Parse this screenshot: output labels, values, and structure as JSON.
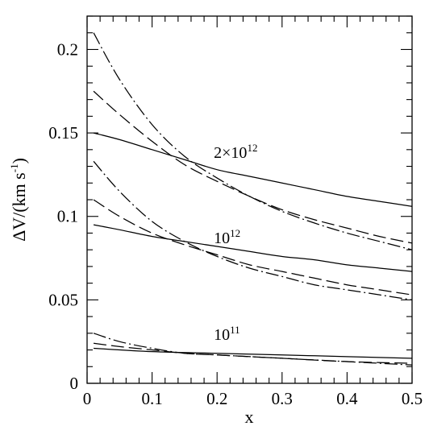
{
  "chart_data": {
    "type": "line",
    "xlabel": "x",
    "ylabel_parts": {
      "main": "ΔV/(km s",
      "sup": "-1",
      "close": ")"
    },
    "xlim": [
      0,
      0.5
    ],
    "ylim": [
      0,
      0.22
    ],
    "x_ticks": [
      "0",
      "0.1",
      "0.2",
      "0.3",
      "0.4",
      "0.5"
    ],
    "x_tick_values": [
      0,
      0.1,
      0.2,
      0.3,
      0.4,
      0.5
    ],
    "y_ticks": [
      "0",
      "0.05",
      "0.1",
      "0.15",
      "0.2"
    ],
    "y_tick_values": [
      0,
      0.05,
      0.1,
      0.15,
      0.2
    ],
    "x_minor_step": 0.02,
    "y_minor_step": 0.01,
    "grid": false,
    "annotations": [
      {
        "id": "m2e12",
        "base": "2×10",
        "sup": "12",
        "x": 0.195,
        "y": 0.135
      },
      {
        "id": "m1e12",
        "base": "10",
        "sup": "12",
        "x": 0.195,
        "y": 0.084
      },
      {
        "id": "m1e11",
        "base": "10",
        "sup": "11",
        "x": 0.195,
        "y": 0.026
      }
    ],
    "series": [
      {
        "group": "2×10^12",
        "style": "solid",
        "x": [
          0.01,
          0.05,
          0.1,
          0.15,
          0.2,
          0.25,
          0.3,
          0.35,
          0.4,
          0.45,
          0.5
        ],
        "y": [
          0.15,
          0.146,
          0.14,
          0.134,
          0.128,
          0.124,
          0.12,
          0.116,
          0.112,
          0.109,
          0.106
        ]
      },
      {
        "group": "2×10^12",
        "style": "dashed",
        "x": [
          0.01,
          0.05,
          0.1,
          0.15,
          0.2,
          0.25,
          0.3,
          0.35,
          0.4,
          0.45,
          0.5
        ],
        "y": [
          0.175,
          0.161,
          0.145,
          0.131,
          0.121,
          0.112,
          0.104,
          0.098,
          0.093,
          0.088,
          0.084
        ]
      },
      {
        "group": "2×10^12",
        "style": "dash-dot",
        "x": [
          0.01,
          0.05,
          0.1,
          0.15,
          0.2,
          0.25,
          0.3,
          0.35,
          0.4,
          0.45,
          0.5
        ],
        "y": [
          0.21,
          0.182,
          0.155,
          0.136,
          0.123,
          0.112,
          0.103,
          0.096,
          0.09,
          0.085,
          0.08
        ]
      },
      {
        "group": "10^12",
        "style": "solid",
        "x": [
          0.01,
          0.05,
          0.1,
          0.15,
          0.2,
          0.25,
          0.3,
          0.35,
          0.4,
          0.45,
          0.5
        ],
        "y": [
          0.095,
          0.092,
          0.088,
          0.085,
          0.082,
          0.079,
          0.076,
          0.074,
          0.071,
          0.069,
          0.067
        ]
      },
      {
        "group": "10^12",
        "style": "dashed",
        "x": [
          0.01,
          0.05,
          0.1,
          0.15,
          0.2,
          0.25,
          0.3,
          0.35,
          0.4,
          0.45,
          0.5
        ],
        "y": [
          0.11,
          0.1,
          0.09,
          0.083,
          0.077,
          0.071,
          0.067,
          0.063,
          0.059,
          0.056,
          0.053
        ]
      },
      {
        "group": "10^12",
        "style": "dash-dot",
        "x": [
          0.01,
          0.05,
          0.1,
          0.15,
          0.2,
          0.25,
          0.3,
          0.35,
          0.4,
          0.45,
          0.5
        ],
        "y": [
          0.133,
          0.115,
          0.097,
          0.085,
          0.076,
          0.069,
          0.064,
          0.059,
          0.056,
          0.053,
          0.05
        ]
      },
      {
        "group": "10^11",
        "style": "solid",
        "x": [
          0.01,
          0.1,
          0.2,
          0.3,
          0.4,
          0.5
        ],
        "y": [
          0.021,
          0.019,
          0.018,
          0.017,
          0.016,
          0.015
        ]
      },
      {
        "group": "10^11",
        "style": "dashed",
        "x": [
          0.01,
          0.05,
          0.1,
          0.15,
          0.2,
          0.3,
          0.4,
          0.5
        ],
        "y": [
          0.024,
          0.022,
          0.02,
          0.018,
          0.017,
          0.015,
          0.013,
          0.012
        ]
      },
      {
        "group": "10^11",
        "style": "dash-dot",
        "x": [
          0.01,
          0.05,
          0.1,
          0.15,
          0.2,
          0.3,
          0.4,
          0.5
        ],
        "y": [
          0.03,
          0.025,
          0.021,
          0.018,
          0.017,
          0.015,
          0.013,
          0.011
        ]
      }
    ]
  }
}
